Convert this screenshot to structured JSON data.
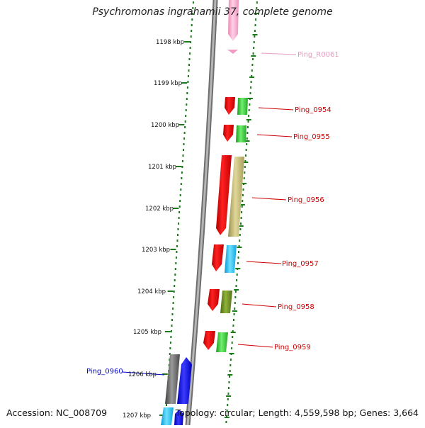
{
  "title": "Psychromonas ingrahamii 37, complete genome",
  "footer": {
    "accession": "Accession: NC_008709",
    "summary": "Topology: circular; Length: 4,559,598 bp; Genes: 3,664"
  },
  "colors": {
    "backbone": "#8a8a8a",
    "ruler_dots": "#1a7a1a",
    "rna_gene": "#f4a6c8",
    "cds_label": "#cc0000",
    "rna_label": "#e79ac0",
    "blue_label": "#0000cc"
  },
  "ruler_labels": [
    "1198 kbp",
    "1199 kbp",
    "1200 kbp",
    "1201 kbp",
    "1202 kbp",
    "1203 kbp",
    "1204 kbp",
    "1205 kbp",
    "1206 kbp",
    "1207 kbp"
  ],
  "gene_labels": [
    {
      "text": "Ping_R0061",
      "color": "#e79ac0"
    },
    {
      "text": "Ping_0954",
      "color": "#cc0000"
    },
    {
      "text": "Ping_0955",
      "color": "#cc0000"
    },
    {
      "text": "Ping_0956",
      "color": "#cc0000"
    },
    {
      "text": "Ping_0957",
      "color": "#cc0000"
    },
    {
      "text": "Ping_0958",
      "color": "#cc0000"
    },
    {
      "text": "Ping_0959",
      "color": "#cc0000"
    },
    {
      "text": "Ping_0960",
      "color": "#0000cc"
    }
  ]
}
